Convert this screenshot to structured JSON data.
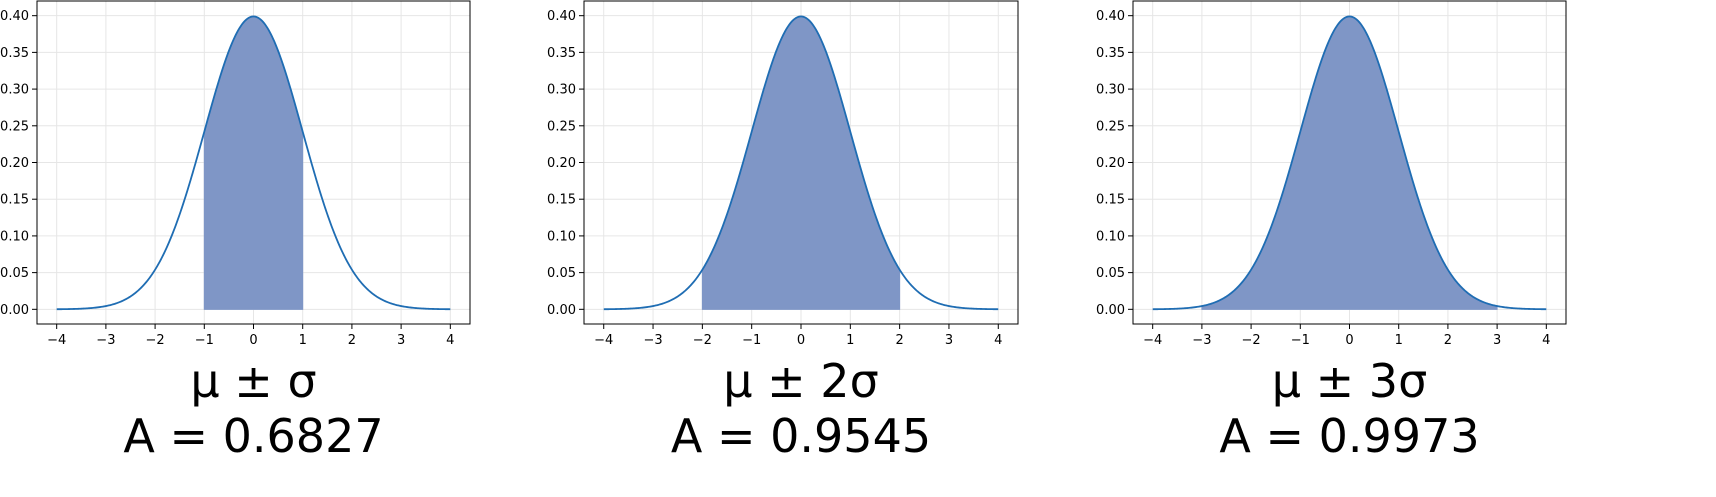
{
  "chart_data": [
    {
      "type": "area",
      "title": "",
      "xlabel": "",
      "ylabel": "",
      "x_ticks": [
        "−4",
        "−3",
        "−2",
        "−1",
        "0",
        "1",
        "2",
        "3",
        "4"
      ],
      "y_ticks": [
        "0.00",
        "0.05",
        "0.10",
        "0.15",
        "0.20",
        "0.25",
        "0.30",
        "0.35",
        "0.40"
      ],
      "xlim": [
        -4.4,
        4.4
      ],
      "ylim": [
        -0.02,
        0.42
      ],
      "grid": true,
      "curve": "standard normal pdf",
      "curve_domain": [
        -4,
        4
      ],
      "shaded_range": [
        -1,
        1
      ],
      "caption": {
        "line1": "μ ± σ",
        "line2": "A = 0.6827"
      }
    },
    {
      "type": "area",
      "title": "",
      "xlabel": "",
      "ylabel": "",
      "x_ticks": [
        "−4",
        "−3",
        "−2",
        "−1",
        "0",
        "1",
        "2",
        "3",
        "4"
      ],
      "y_ticks": [
        "0.00",
        "0.05",
        "0.10",
        "0.15",
        "0.20",
        "0.25",
        "0.30",
        "0.35",
        "0.40"
      ],
      "xlim": [
        -4.4,
        4.4
      ],
      "ylim": [
        -0.02,
        0.42
      ],
      "grid": true,
      "curve": "standard normal pdf",
      "curve_domain": [
        -4,
        4
      ],
      "shaded_range": [
        -2,
        2
      ],
      "caption": {
        "line1": "μ ± 2σ",
        "line2": "A = 0.9545"
      }
    },
    {
      "type": "area",
      "title": "",
      "xlabel": "",
      "ylabel": "",
      "x_ticks": [
        "−4",
        "−3",
        "−2",
        "−1",
        "0",
        "1",
        "2",
        "3",
        "4"
      ],
      "y_ticks": [
        "0.00",
        "0.05",
        "0.10",
        "0.15",
        "0.20",
        "0.25",
        "0.30",
        "0.35",
        "0.40"
      ],
      "xlim": [
        -4.4,
        4.4
      ],
      "ylim": [
        -0.02,
        0.42
      ],
      "grid": true,
      "curve": "standard normal pdf",
      "curve_domain": [
        -4,
        4
      ],
      "shaded_range": [
        -3,
        3
      ],
      "caption": {
        "line1": "μ ± 3σ",
        "line2": "A = 0.9973"
      }
    }
  ],
  "colors": {
    "line": "#1f6db3",
    "fill": "#7f96c6",
    "grid": "#e6e6e6",
    "axis": "#000000"
  }
}
